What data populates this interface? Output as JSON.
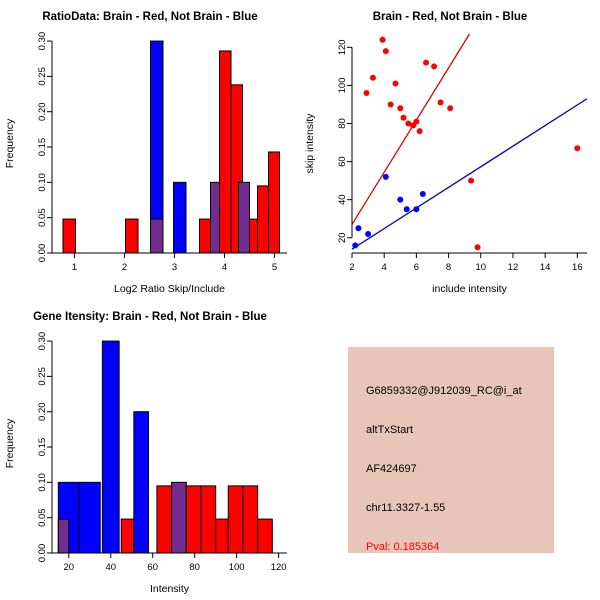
{
  "figure": {
    "background": "#ffffff"
  },
  "colors": {
    "red": "#ff0000",
    "blue": "#0000ff",
    "purple": "#732d91",
    "axis": "#000000",
    "red_line": "#e00000",
    "blue_line": "#0000bb"
  },
  "chart_data": [
    {
      "id": "ratio-histogram",
      "type": "bar",
      "title": "RatioData: Brain - Red, Not Brain - Blue",
      "xlabel": "Log2 Ratio Skip/Include",
      "ylabel": "Frequency",
      "xlim": [
        0.55,
        5.25
      ],
      "ylim": [
        0,
        0.31
      ],
      "xticks": [
        1,
        2,
        3,
        4,
        5
      ],
      "xtick_labels": [
        "1",
        "2",
        "3",
        "4",
        "5"
      ],
      "yticks": [
        0,
        0.05,
        0.1,
        0.15,
        0.2,
        0.25,
        0.3
      ],
      "ytick_labels": [
        "0.00",
        "0.05",
        "0.10",
        "0.15",
        "0.20",
        "0.25",
        "0.30"
      ],
      "series_note": "red = Brain, blue = Not Brain, purple = overlap of red and blue histograms",
      "bars": [
        {
          "x0": 0.77,
          "x1": 1.02,
          "h": 0.048,
          "color": "red"
        },
        {
          "x0": 2.02,
          "x1": 2.27,
          "h": 0.048,
          "color": "red"
        },
        {
          "x0": 2.52,
          "x1": 2.77,
          "h": 0.3,
          "color": "blue"
        },
        {
          "x0": 2.52,
          "x1": 2.77,
          "h": 0.048,
          "color": "purple"
        },
        {
          "x0": 2.98,
          "x1": 3.23,
          "h": 0.1,
          "color": "blue"
        },
        {
          "x0": 3.5,
          "x1": 3.72,
          "h": 0.048,
          "color": "red"
        },
        {
          "x0": 3.72,
          "x1": 3.95,
          "h": 0.1,
          "color": "purple"
        },
        {
          "x0": 3.9,
          "x1": 4.13,
          "h": 0.286,
          "color": "red"
        },
        {
          "x0": 4.13,
          "x1": 4.36,
          "h": 0.238,
          "color": "red"
        },
        {
          "x0": 4.28,
          "x1": 4.5,
          "h": 0.1,
          "color": "purple"
        },
        {
          "x0": 4.5,
          "x1": 4.66,
          "h": 0.048,
          "color": "red"
        },
        {
          "x0": 4.66,
          "x1": 4.88,
          "h": 0.095,
          "color": "red"
        },
        {
          "x0": 4.88,
          "x1": 5.1,
          "h": 0.143,
          "color": "red"
        }
      ]
    },
    {
      "id": "skip-include-scatter",
      "type": "scatter",
      "title": "Brain - Red, Not Brain - Blue",
      "xlabel": "include intensity",
      "ylabel": "skip intensity",
      "xlim": [
        2,
        16.6
      ],
      "ylim": [
        12,
        127
      ],
      "xticks": [
        2,
        4,
        6,
        8,
        10,
        12,
        14,
        16
      ],
      "xtick_labels": [
        "2",
        "4",
        "6",
        "8",
        "10",
        "12",
        "14",
        "16"
      ],
      "yticks": [
        20,
        40,
        60,
        80,
        100,
        120
      ],
      "ytick_labels": [
        "20",
        "40",
        "60",
        "80",
        "100",
        "120"
      ],
      "series": [
        {
          "name": "Brain",
          "color": "red",
          "points": [
            [
              2.9,
              96
            ],
            [
              3.3,
              104
            ],
            [
              3.9,
              124
            ],
            [
              4.1,
              118
            ],
            [
              4.4,
              90
            ],
            [
              4.7,
              101
            ],
            [
              5,
              88
            ],
            [
              5.2,
              83
            ],
            [
              5.5,
              80
            ],
            [
              5.8,
              79
            ],
            [
              6,
              81
            ],
            [
              6.2,
              76
            ],
            [
              6.6,
              112
            ],
            [
              7.1,
              110
            ],
            [
              7.5,
              91
            ],
            [
              8.1,
              88
            ],
            [
              9.4,
              50
            ],
            [
              9.8,
              15
            ],
            [
              16,
              67
            ]
          ]
        },
        {
          "name": "Not Brain",
          "color": "blue",
          "points": [
            [
              2.2,
              16
            ],
            [
              2.4,
              25
            ],
            [
              3,
              22
            ],
            [
              4.1,
              52
            ],
            [
              5,
              40
            ],
            [
              5.4,
              35
            ],
            [
              6,
              35
            ],
            [
              6.4,
              43
            ]
          ]
        }
      ],
      "fit_lines": [
        {
          "color": "red_line",
          "from": [
            2,
            27
          ],
          "to": [
            9.3,
            127
          ]
        },
        {
          "color": "blue_line",
          "from": [
            2,
            14
          ],
          "to": [
            16.6,
            93
          ]
        }
      ]
    },
    {
      "id": "gene-intensity-histogram",
      "type": "bar",
      "title": "Gene Itensity: Brain - Red, Not Brain - Blue",
      "xlabel": "Intensity",
      "ylabel": "Frequency",
      "xlim": [
        12,
        124
      ],
      "ylim": [
        0,
        0.31
      ],
      "xticks": [
        20,
        40,
        60,
        80,
        100,
        120
      ],
      "xtick_labels": [
        "20",
        "40",
        "60",
        "80",
        "100",
        "120"
      ],
      "yticks": [
        0,
        0.05,
        0.1,
        0.15,
        0.2,
        0.25,
        0.3
      ],
      "ytick_labels": [
        "0.00",
        "0.05",
        "0.10",
        "0.15",
        "0.20",
        "0.25",
        "0.30"
      ],
      "series_note": "red = Brain, blue = Not Brain, purple = overlap of red and blue histograms",
      "bars": [
        {
          "x0": 15,
          "x1": 25,
          "h": 0.1,
          "color": "blue"
        },
        {
          "x0": 15,
          "x1": 20,
          "h": 0.048,
          "color": "purple"
        },
        {
          "x0": 25,
          "x1": 35,
          "h": 0.1,
          "color": "blue"
        },
        {
          "x0": 36,
          "x1": 44,
          "h": 0.3,
          "color": "blue"
        },
        {
          "x0": 45,
          "x1": 51,
          "h": 0.048,
          "color": "red"
        },
        {
          "x0": 51,
          "x1": 58,
          "h": 0.2,
          "color": "blue"
        },
        {
          "x0": 62,
          "x1": 69,
          "h": 0.095,
          "color": "red"
        },
        {
          "x0": 69,
          "x1": 76,
          "h": 0.1,
          "color": "purple"
        },
        {
          "x0": 76,
          "x1": 83,
          "h": 0.095,
          "color": "red"
        },
        {
          "x0": 83,
          "x1": 90,
          "h": 0.095,
          "color": "red"
        },
        {
          "x0": 90,
          "x1": 96,
          "h": 0.048,
          "color": "red"
        },
        {
          "x0": 96,
          "x1": 103,
          "h": 0.095,
          "color": "red"
        },
        {
          "x0": 103,
          "x1": 110,
          "h": 0.095,
          "color": "red"
        },
        {
          "x0": 110,
          "x1": 117,
          "h": 0.048,
          "color": "red"
        }
      ]
    }
  ],
  "info_box": {
    "background": "#e7c6b9",
    "probe_id": "G6859332@J912039_RC@i_at",
    "event_type": "altTxStart",
    "accession": "AF424697",
    "location": "chr11.3327-1.55",
    "pval": "Pval: 0.185364",
    "pval_color": "#ff0000",
    "text_color": "#000000"
  }
}
